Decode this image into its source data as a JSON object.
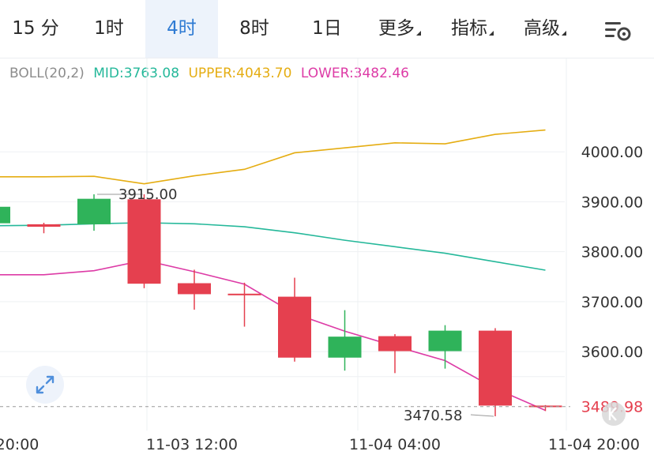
{
  "tabs": [
    {
      "label": "15 分",
      "active": false,
      "dropdown": false
    },
    {
      "label": "1时",
      "active": false,
      "dropdown": false
    },
    {
      "label": "4时",
      "active": true,
      "dropdown": false
    },
    {
      "label": "8时",
      "active": false,
      "dropdown": false
    },
    {
      "label": "1日",
      "active": false,
      "dropdown": false
    },
    {
      "label": "更多",
      "active": false,
      "dropdown": true
    },
    {
      "label": "指标",
      "active": false,
      "dropdown": true
    },
    {
      "label": "高级",
      "active": false,
      "dropdown": true
    }
  ],
  "indicator": {
    "name": "BOLL(20,2)",
    "mid": "MID:3763.08",
    "upper": "UPPER:4043.70",
    "lower": "LOWER:3482.46"
  },
  "colors": {
    "up": "#2fb35a",
    "down": "#e5404f",
    "mid": "#25b89a",
    "upper": "#e5ad12",
    "lower": "#dd3ba6",
    "grid": "#eef0f3",
    "axis_text": "#333333",
    "price_tag": "#e5404f"
  },
  "chart_data": {
    "type": "candlestick",
    "y_range": [
      3450,
      4130
    ],
    "y_ticks": [
      "4000.00",
      "3900.00",
      "3800.00",
      "3700.00",
      "3600.00"
    ],
    "x_labels": [
      "20:00",
      "11-03 12:00",
      "11-04 04:00",
      "11-04 20:00"
    ],
    "candles": [
      {
        "open": 3857,
        "close": 3890,
        "high": 3893,
        "low": 3855
      },
      {
        "open": 3855,
        "close": 3850,
        "high": 3858,
        "low": 3837
      },
      {
        "open": 3855,
        "close": 3906,
        "high": 3915,
        "low": 3842
      },
      {
        "open": 3905,
        "close": 3736,
        "high": 3915,
        "low": 3727
      },
      {
        "open": 3737,
        "close": 3715,
        "high": 3764,
        "low": 3684
      },
      {
        "open": 3716,
        "close": 3713,
        "high": 3738,
        "low": 3650
      },
      {
        "open": 3710,
        "close": 3588,
        "high": 3748,
        "low": 3580
      },
      {
        "open": 3588,
        "close": 3630,
        "high": 3683,
        "low": 3562
      },
      {
        "open": 3631,
        "close": 3601,
        "high": 3635,
        "low": 3557
      },
      {
        "open": 3601,
        "close": 3642,
        "high": 3653,
        "low": 3566
      },
      {
        "open": 3642,
        "close": 3492,
        "high": 3647,
        "low": 3470.58
      },
      {
        "open": 3492,
        "close": 3489.98,
        "high": 3493,
        "low": 3481
      }
    ],
    "boll_upper": [
      3950,
      3950,
      3951,
      3936,
      3952,
      3965,
      3998,
      4008,
      4018,
      4016,
      4035,
      4043.7
    ],
    "boll_mid": [
      3852,
      3853,
      3856,
      3858,
      3856,
      3850,
      3838,
      3823,
      3810,
      3797,
      3780,
      3763.08
    ],
    "boll_lower": [
      3754,
      3754,
      3762,
      3783,
      3760,
      3735,
      3676,
      3641,
      3611,
      3582,
      3526,
      3482.46
    ],
    "annotations": {
      "high_label": "3915.00",
      "low_label": "3470.58"
    },
    "last_price": "3489.98"
  }
}
